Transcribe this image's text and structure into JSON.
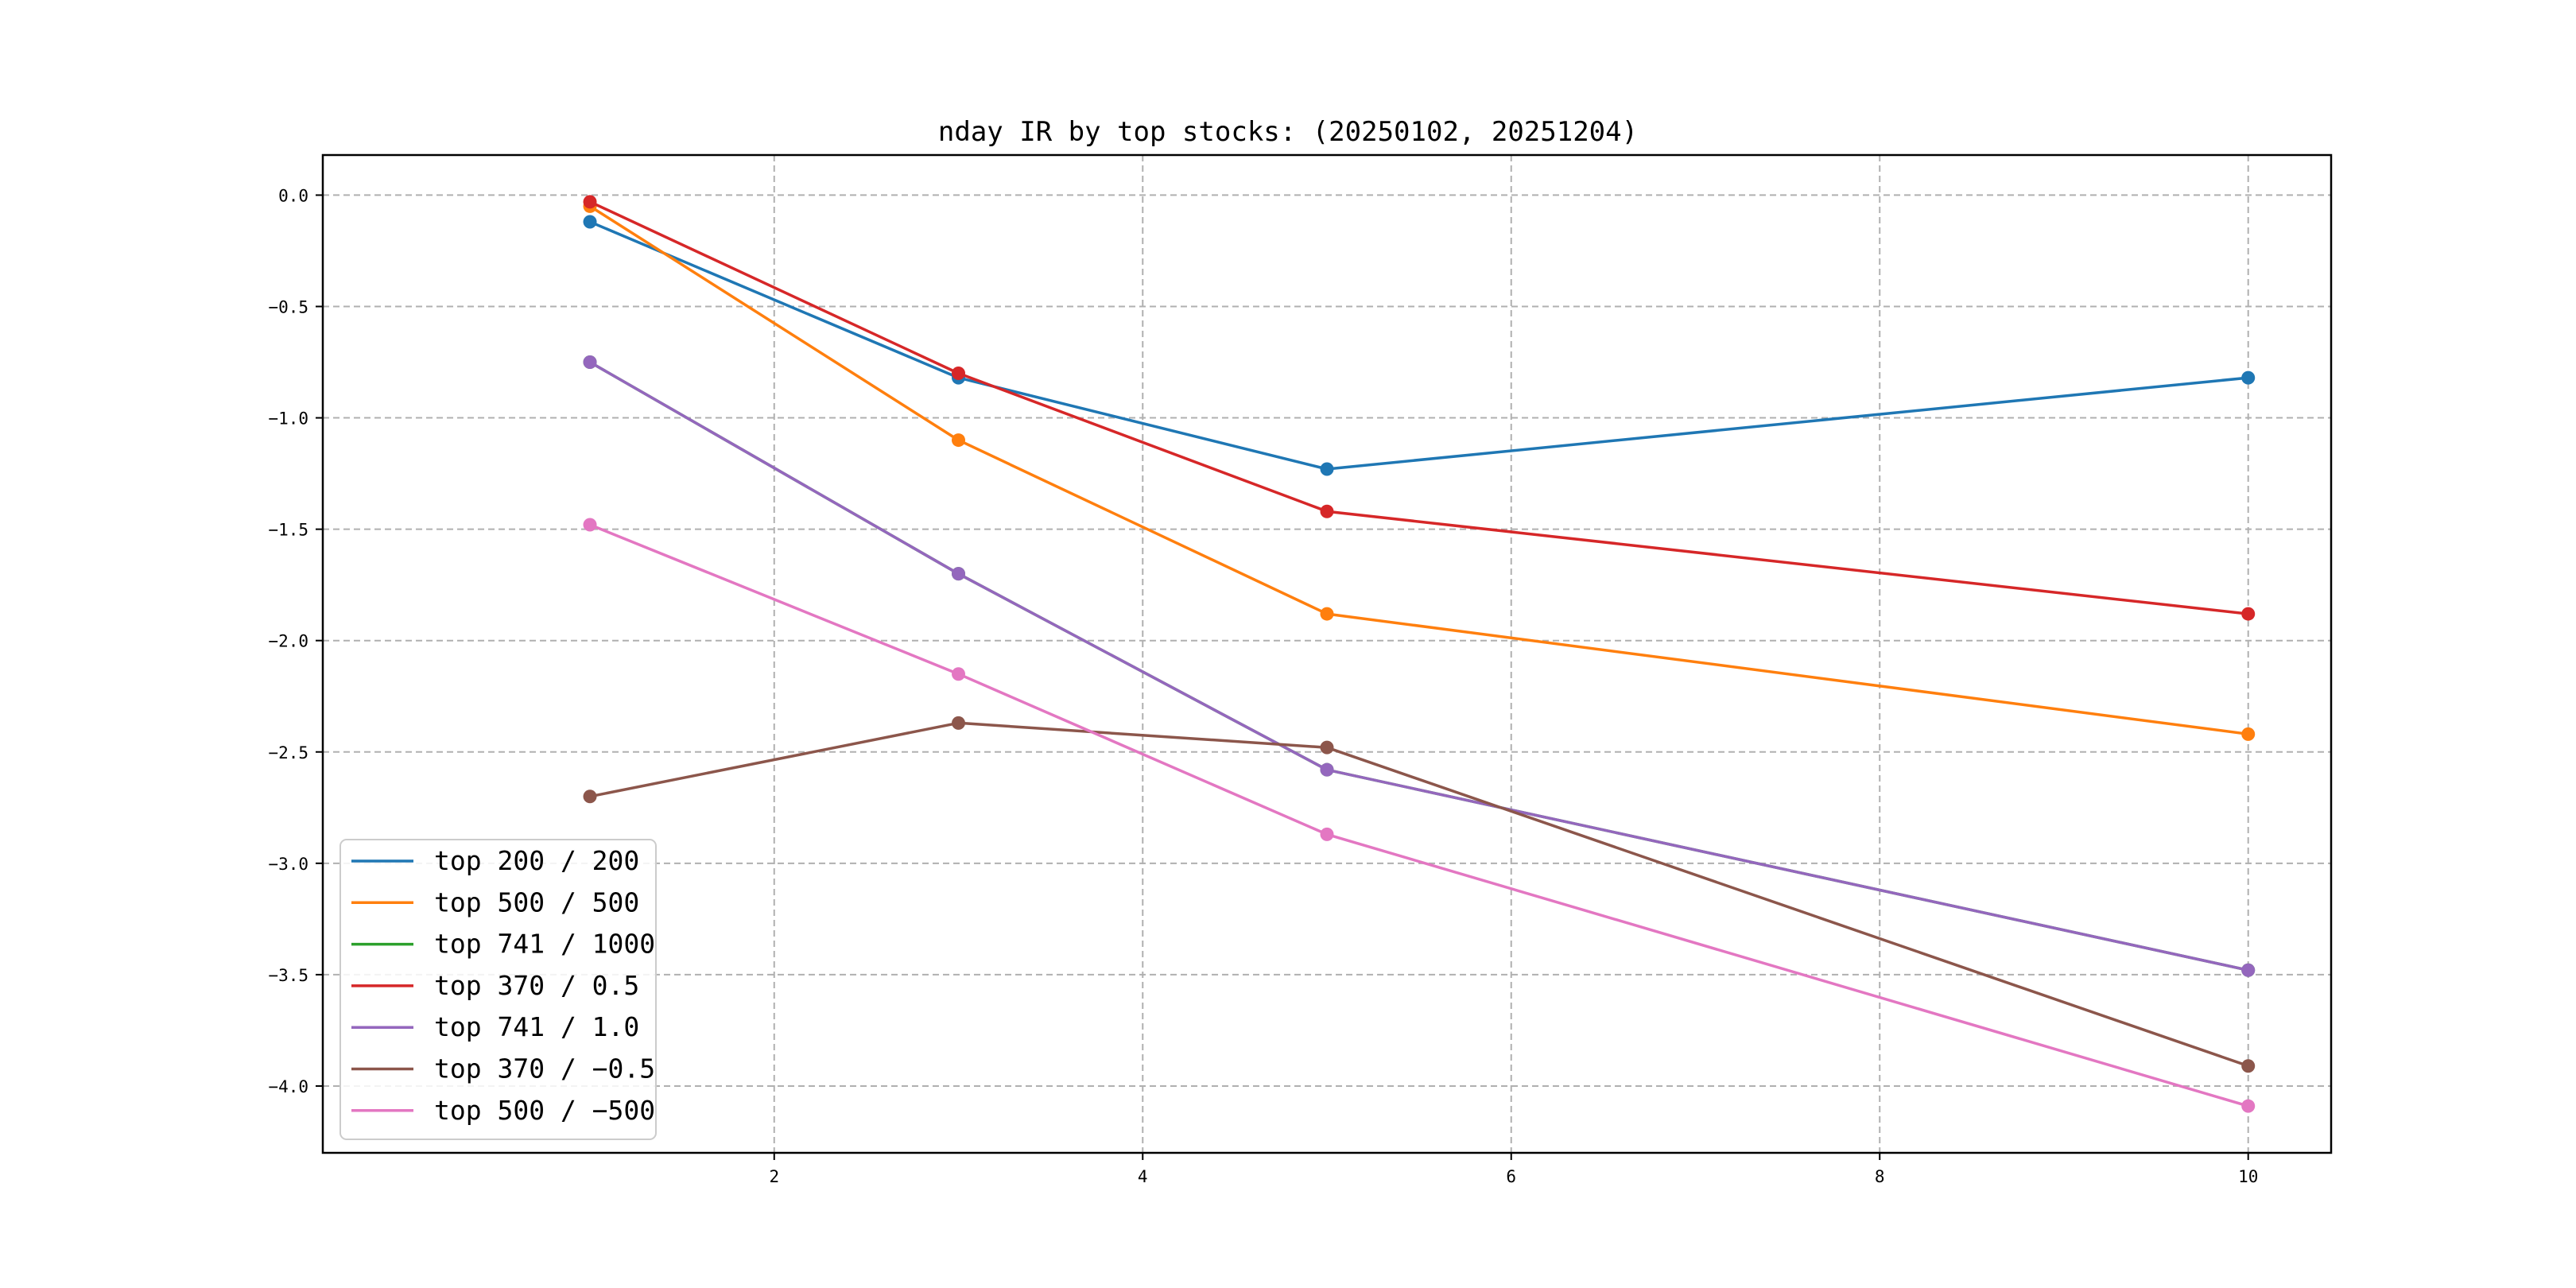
{
  "chart_data": {
    "type": "line",
    "title": "nday IR by top stocks: (20250102, 20251204)",
    "xlabel": "",
    "ylabel": "",
    "x": [
      1,
      3,
      5,
      10
    ],
    "xlim": [
      -0.45,
      10.45
    ],
    "ylim": [
      -4.3,
      0.18
    ],
    "xticks": [
      2,
      4,
      6,
      8,
      10
    ],
    "xtick_labels": [
      "2",
      "4",
      "6",
      "8",
      "10"
    ],
    "yticks": [
      0.0,
      -0.5,
      -1.0,
      -1.5,
      -2.0,
      -2.5,
      -3.0,
      -3.5,
      -4.0
    ],
    "ytick_labels": [
      "0.0",
      "−0.5",
      "−1.0",
      "−1.5",
      "−2.0",
      "−2.5",
      "−3.0",
      "−3.5",
      "−4.0"
    ],
    "grid": true,
    "legend_position": "lower-left",
    "series": [
      {
        "name": "top 200 / 200",
        "color": "#1f77b4",
        "values": [
          -0.12,
          -0.82,
          -1.23,
          -0.82
        ]
      },
      {
        "name": "top 500 / 500",
        "color": "#ff7f0e",
        "values": [
          -0.05,
          -1.1,
          -1.88,
          -2.42
        ]
      },
      {
        "name": "top 741 / 1000",
        "color": "#2ca02c",
        "values": [
          -0.75,
          -1.7,
          -2.58,
          -3.48
        ]
      },
      {
        "name": "top 370 / 0.5",
        "color": "#d62728",
        "values": [
          -0.03,
          -0.8,
          -1.42,
          -1.88
        ]
      },
      {
        "name": "top 741 / 1.0",
        "color": "#9467bd",
        "values": [
          -0.75,
          -1.7,
          -2.58,
          -3.48
        ]
      },
      {
        "name": "top 370 / −0.5",
        "color": "#8c564b",
        "values": [
          -2.7,
          -2.37,
          -2.48,
          -3.91
        ]
      },
      {
        "name": "top 500 / −500",
        "color": "#e377c2",
        "values": [
          -1.48,
          -2.15,
          -2.87,
          -4.09
        ]
      }
    ]
  }
}
